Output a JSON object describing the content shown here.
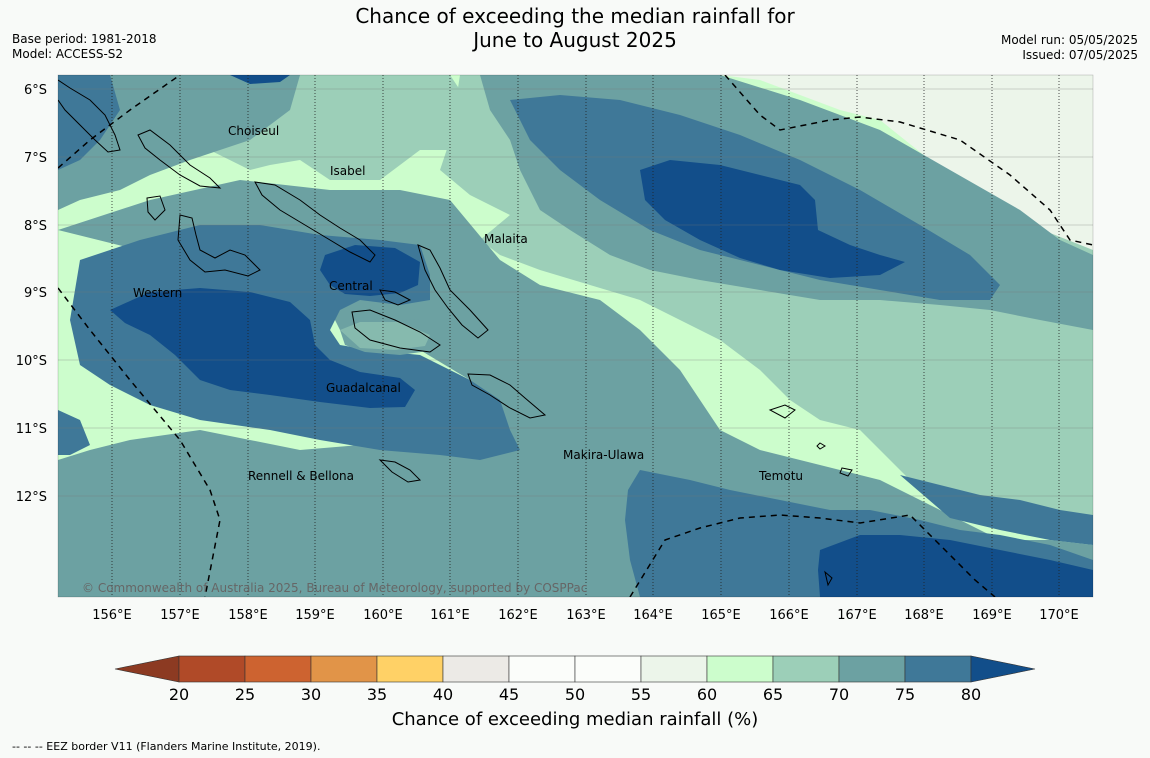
{
  "title_line1": "Chance of exceeding the median rainfall for",
  "title_line2": "June to August 2025",
  "base_period": "Base period: 1981-2018",
  "model": "Model: ACCESS-S2",
  "model_run": "Model run: 05/05/2025",
  "issued": "Issued: 07/05/2025",
  "copyright": "© Commonwealth of Australia 2025, Bureau of Meteorology, supported by COSPPac",
  "lat_labels": [
    "6°S",
    "7°S",
    "8°S",
    "9°S",
    "10°S",
    "11°S",
    "12°S"
  ],
  "lon_labels": [
    "156°E",
    "157°E",
    "158°E",
    "159°E",
    "160°E",
    "161°E",
    "162°E",
    "163°E",
    "164°E",
    "165°E",
    "166°E",
    "167°E",
    "168°E",
    "169°E",
    "170°E"
  ],
  "regions": {
    "choiseul": "Choiseul",
    "isabel": "Isabel",
    "malaita": "Malaita",
    "western": "Western",
    "central": "Central",
    "guadalcanal": "Guadalcanal",
    "makira": "Makira-Ulawa",
    "temotu": "Temotu",
    "rennell": "Rennell & Bellona"
  },
  "colorbar": {
    "ticks": [
      "20",
      "25",
      "30",
      "35",
      "40",
      "45",
      "50",
      "55",
      "60",
      "65",
      "70",
      "75",
      "80"
    ],
    "title": "Chance of exceeding median rainfall (%)",
    "colors": {
      "below20": "#8c3a22",
      "c20_25": "#b04a28",
      "c25_30": "#cd6330",
      "c30_35": "#e19448",
      "c35_40": "#ffd166",
      "c40_45": "#eceae6",
      "c45_50": "#fbfdfa",
      "c50_55": "#fbfdfa",
      "c55_60": "#ecf5ea",
      "c60_65": "#ccfdcc",
      "c65_70": "#9ccfb8",
      "c70_75": "#6ca1a2",
      "c75_80": "#3f7898",
      "above80": "#124e8a"
    }
  },
  "footer": "--  --  -- EEZ border V11 (Flanders Marine Institute, 2019)."
}
